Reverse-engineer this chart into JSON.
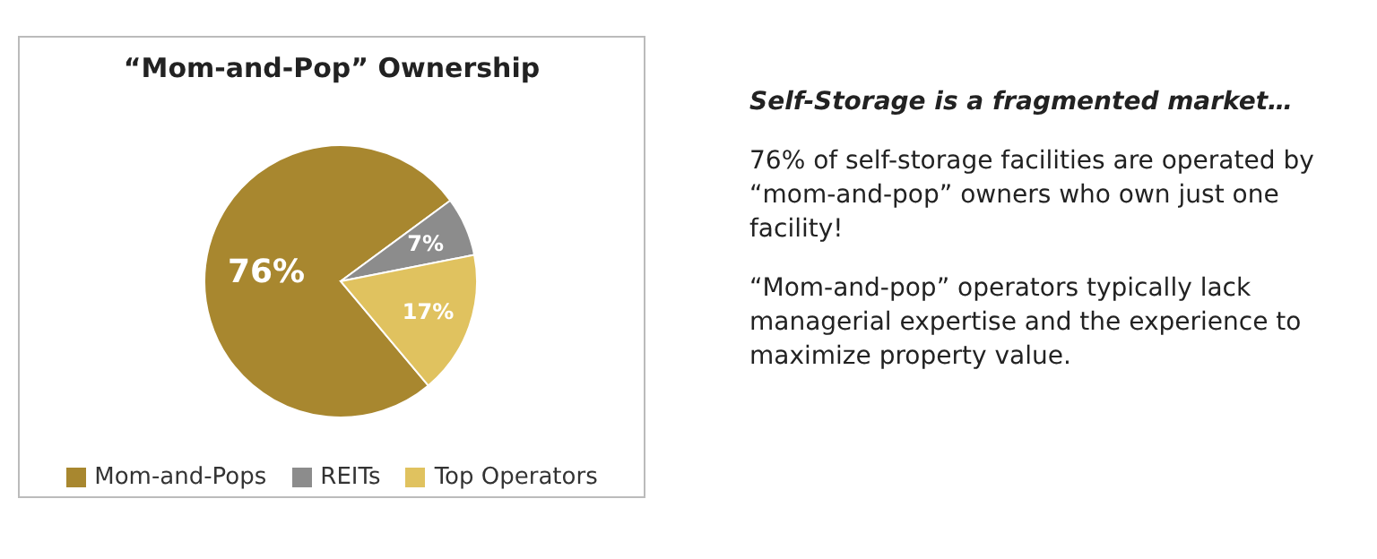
{
  "chart_data": {
    "type": "pie",
    "title": "“Mom-and-Pop” Ownership",
    "categories": [
      "Mom-and-Pops",
      "REITs",
      "Top Operators"
    ],
    "values": [
      76,
      7,
      17
    ],
    "colors": [
      "#a8872f",
      "#8c8c8c",
      "#e0c25f"
    ],
    "value_labels": [
      "76%",
      "7%",
      "17%"
    ],
    "legend": "bottom",
    "annotations": [
      "Self-Storage is a fragmented market…",
      "76% of self-storage facilities are operated by “mom-and-pop” owners who own just one facility!",
      "“Mom-and-pop” operators typically lack managerial expertise and the experience to maximize property value."
    ]
  }
}
